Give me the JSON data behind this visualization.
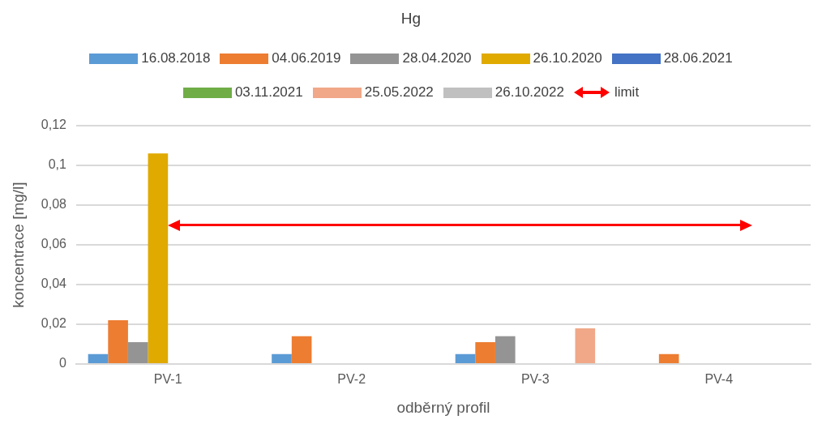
{
  "chart_data": {
    "type": "bar",
    "title": "Hg",
    "xlabel": "odběrný profil",
    "ylabel": "koncentrace [mg/l]",
    "categories": [
      "PV-1",
      "PV-2",
      "PV-3",
      "PV-4"
    ],
    "series": [
      {
        "name": "16.08.2018",
        "color": "#5b9bd5",
        "values": [
          0.005,
          0.005,
          0.005,
          null
        ]
      },
      {
        "name": "04.06.2019",
        "color": "#ed7d31",
        "values": [
          0.022,
          0.014,
          0.011,
          0.005
        ]
      },
      {
        "name": "28.04.2020",
        "color": "#949494",
        "values": [
          0.011,
          null,
          0.014,
          null
        ]
      },
      {
        "name": "26.10.2020",
        "color": "#e0aa00",
        "values": [
          0.106,
          null,
          null,
          null
        ]
      },
      {
        "name": "28.06.2021",
        "color": "#4472c4",
        "values": [
          null,
          null,
          null,
          null
        ]
      },
      {
        "name": "03.11.2021",
        "color": "#70ad47",
        "values": [
          null,
          null,
          null,
          null
        ]
      },
      {
        "name": "25.05.2022",
        "color": "#f0a888",
        "values": [
          null,
          null,
          0.018,
          null
        ]
      },
      {
        "name": "26.10.2022",
        "color": "#c0c0c0",
        "values": [
          null,
          null,
          null,
          null
        ]
      }
    ],
    "ref_lines": [
      {
        "axis": "y",
        "value": 0.07,
        "label": "limit",
        "color": "#ff0000"
      }
    ],
    "ylim": [
      0,
      0.12
    ],
    "yticks": [
      0,
      {
        "value": 0.02,
        "label": "0,02"
      },
      {
        "value": 0.04,
        "label": "0,04"
      },
      {
        "value": 0.06,
        "label": "0,06"
      },
      {
        "value": 0.08,
        "label": "0,08"
      },
      {
        "value": 0.1,
        "label": "0,1"
      },
      {
        "value": 0.12,
        "label": "0,12"
      }
    ],
    "grid": "y",
    "legend": "top"
  }
}
